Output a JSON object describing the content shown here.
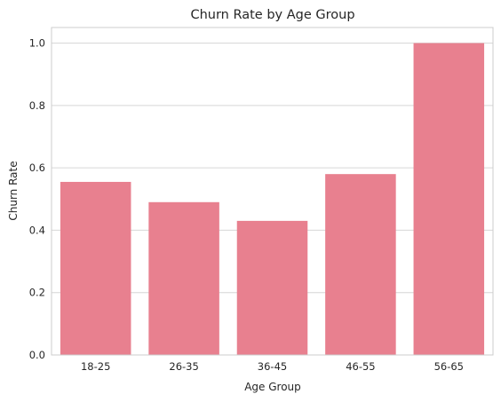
{
  "chart_data": {
    "type": "bar",
    "title": "Churn Rate by Age Group",
    "xlabel": "Age Group",
    "ylabel": "Churn Rate",
    "categories": [
      "18-25",
      "26-35",
      "36-45",
      "46-55",
      "56-65"
    ],
    "values": [
      0.555,
      0.49,
      0.43,
      0.58,
      1.0
    ],
    "ylim": [
      0,
      1.05
    ],
    "yticks": [
      "0.0",
      "0.2",
      "0.4",
      "0.6",
      "0.8",
      "1.0"
    ],
    "grid": "horizontal",
    "bar_color": "#e8808f"
  }
}
